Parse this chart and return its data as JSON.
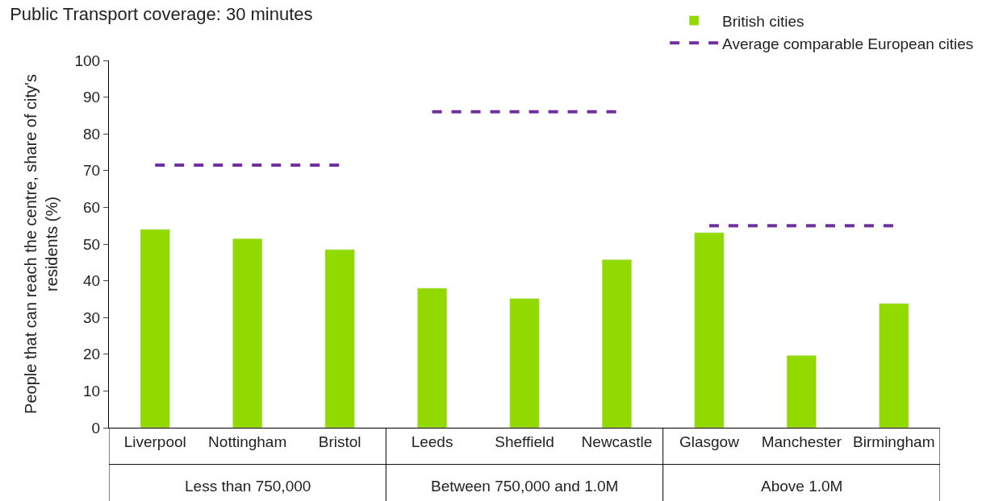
{
  "chart_data": {
    "type": "bar",
    "title": "Public Transport coverage: 30 minutes",
    "ylabel": "People that can reach the centre, share of city's residents (%)",
    "categories": [
      "Liverpool",
      "Nottingham",
      "Bristol",
      "Leeds",
      "Sheffield",
      "Newcastle",
      "Glasgow",
      "Manchester",
      "Birmingham"
    ],
    "series": [
      {
        "name": "British cities",
        "color": "#92d900",
        "values": [
          54,
          51.5,
          48.5,
          38,
          35.2,
          45.8,
          53.1,
          19.7,
          33.8
        ]
      },
      {
        "name": "Average comparable European cities",
        "type": "line",
        "color": "#7030a0",
        "line_style": "dashed",
        "values": [
          71.5,
          71.5,
          71.5,
          86,
          86,
          86,
          55,
          55,
          55
        ]
      }
    ],
    "annotations": [
      "Less than 750,000",
      "Between 750,000 and 1.0M",
      "Above 1.0M"
    ],
    "ylim": [
      0,
      100
    ],
    "yticks": [
      0,
      10,
      20,
      30,
      40,
      50,
      60,
      70,
      80,
      90,
      100
    ],
    "legend": "top right",
    "marker": "none"
  }
}
